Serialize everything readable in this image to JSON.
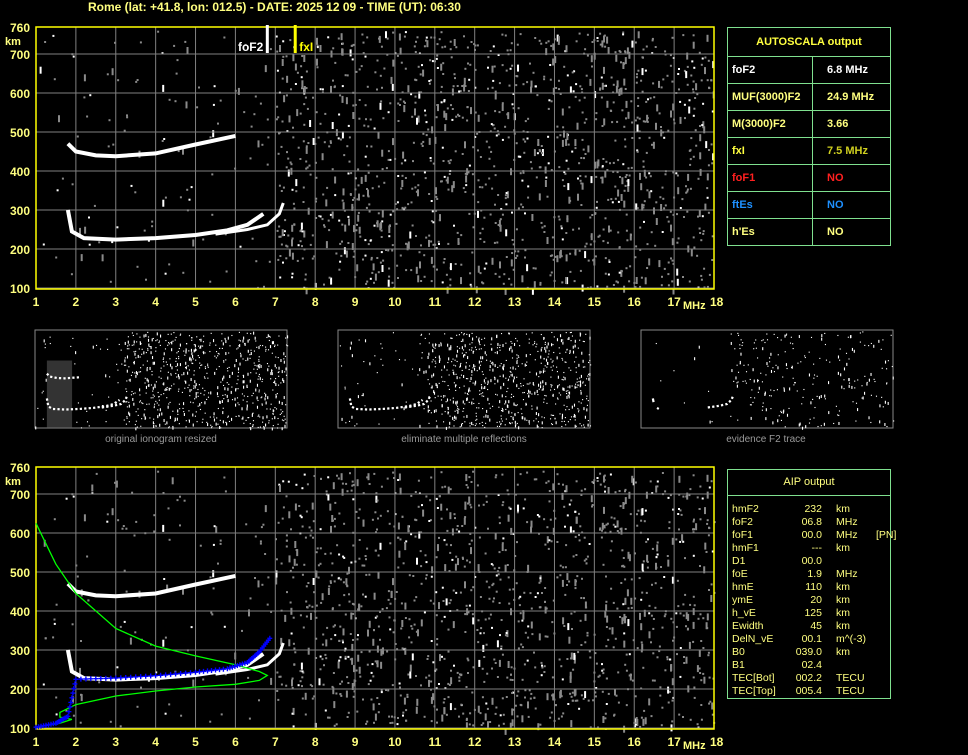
{
  "header": {
    "title": "Rome (lat: +41.8, lon: 012.5) - DATE: 2025 12 09 - TIME (UT): 06:30"
  },
  "colors": {
    "axis": "#ffff00",
    "grid": "#808080",
    "trace": "#ffffff",
    "profile": "#00ff00",
    "fitted": "#0000ff",
    "table_border": "#7fe08f",
    "label_yellow": "#ffff80",
    "red": "#ff2020",
    "blue": "#1e90ff"
  },
  "chart_data": [
    {
      "type": "scatter",
      "xlabel": "MHz",
      "ylabel": "km",
      "xlim": [
        1,
        18
      ],
      "ylim": [
        100,
        760
      ],
      "xticks": [
        "1",
        "2",
        "3",
        "4",
        "5",
        "6",
        "7",
        "8",
        "9",
        "10",
        "11",
        "12",
        "13",
        "14",
        "15",
        "16",
        "17",
        "18"
      ],
      "yticks": [
        "760",
        "700",
        "600",
        "500",
        "400",
        "300",
        "200",
        "100"
      ],
      "grid": true,
      "markers": [
        {
          "name": "foF2",
          "x": 6.8
        },
        {
          "name": "fxI",
          "x": 7.5
        }
      ],
      "traces": {
        "f2_o": [
          [
            1.8,
            300
          ],
          [
            1.9,
            245
          ],
          [
            2.2,
            228
          ],
          [
            3,
            224
          ],
          [
            4,
            228
          ],
          [
            5,
            236
          ],
          [
            5.8,
            248
          ],
          [
            6.3,
            262
          ],
          [
            6.7,
            290
          ]
        ],
        "f2_x": [
          [
            5.5,
            238
          ],
          [
            6.3,
            250
          ],
          [
            6.8,
            262
          ],
          [
            7.1,
            290
          ],
          [
            7.2,
            318
          ]
        ],
        "multiple": [
          [
            1.8,
            470
          ],
          [
            2,
            450
          ],
          [
            2.5,
            440
          ],
          [
            3,
            438
          ],
          [
            4,
            445
          ],
          [
            5,
            468
          ],
          [
            6,
            490
          ]
        ]
      }
    },
    {
      "type": "scatter",
      "xlabel": "MHz",
      "ylabel": "km",
      "xlim": [
        1,
        18
      ],
      "ylim": [
        100,
        760
      ],
      "xticks": [
        "1",
        "2",
        "3",
        "4",
        "5",
        "6",
        "7",
        "8",
        "9",
        "10",
        "11",
        "12",
        "13",
        "14",
        "15",
        "16",
        "17",
        "18"
      ],
      "yticks": [
        "760",
        "700",
        "600",
        "500",
        "400",
        "300",
        "200",
        "100"
      ],
      "grid": true,
      "profile": [
        [
          1,
          625
        ],
        [
          1.5,
          520
        ],
        [
          2,
          445
        ],
        [
          3,
          355
        ],
        [
          4,
          310
        ],
        [
          5,
          285
        ],
        [
          6,
          262
        ],
        [
          6.6,
          245
        ],
        [
          6.8,
          235
        ],
        [
          6.6,
          222
        ],
        [
          6,
          212
        ],
        [
          5,
          205
        ],
        [
          4,
          195
        ],
        [
          3,
          182
        ],
        [
          2,
          160
        ],
        [
          1.6,
          140
        ],
        [
          1.6,
          128
        ],
        [
          1.9,
          122
        ],
        [
          1.6,
          112
        ],
        [
          1,
          102
        ]
      ],
      "fitted": [
        [
          1,
          102
        ],
        [
          1.5,
          112
        ],
        [
          1.8,
          130
        ],
        [
          2,
          225
        ],
        [
          3,
          228
        ],
        [
          4,
          234
        ],
        [
          5,
          243
        ],
        [
          5.8,
          252
        ],
        [
          6.3,
          268
        ],
        [
          6.6,
          295
        ],
        [
          6.9,
          335
        ]
      ]
    }
  ],
  "panels": [
    {
      "caption": "original ionogram resized"
    },
    {
      "caption": "eliminate multiple reflections"
    },
    {
      "caption": "evidence F2 trace"
    }
  ],
  "autoscala": {
    "title": "AUTOSCALA output",
    "rows": [
      {
        "label": "foF2",
        "value": "6.8 MHz",
        "lc": "#ffffff",
        "vc": "#ffffff"
      },
      {
        "label": "MUF(3000)F2",
        "value": "24.9 MHz",
        "lc": "#ffff80",
        "vc": "#ffff80"
      },
      {
        "label": "M(3000)F2",
        "value": "3.66",
        "lc": "#ffff80",
        "vc": "#ffff80"
      },
      {
        "label": "fxI",
        "value": "7.5 MHz",
        "lc": "#ffff40",
        "vc": "#d0d020"
      },
      {
        "label": "foF1",
        "value": "NO",
        "lc": "#ff2020",
        "vc": "#ff2020"
      },
      {
        "label": "ftEs",
        "value": "NO",
        "lc": "#1e90ff",
        "vc": "#1e90ff"
      },
      {
        "label": "h'Es",
        "value": "NO",
        "lc": "#ffff80",
        "vc": "#ffff80"
      }
    ]
  },
  "aip": {
    "title": "AIP output",
    "rows": [
      {
        "n": "hmF2",
        "v": "232",
        "u": "km",
        "x": ""
      },
      {
        "n": "foF2",
        "v": "06.8",
        "u": "MHz",
        "x": ""
      },
      {
        "n": "foF1",
        "v": "00.0",
        "u": "MHz",
        "x": "[PN]"
      },
      {
        "n": "hmF1",
        "v": "---",
        "u": "km",
        "x": ""
      },
      {
        "n": "D1",
        "v": "00.0",
        "u": "",
        "x": ""
      },
      {
        "n": "foE",
        "v": "1.9",
        "u": "MHz",
        "x": ""
      },
      {
        "n": "hmE",
        "v": "110",
        "u": "km",
        "x": ""
      },
      {
        "n": "ymE",
        "v": "20",
        "u": "km",
        "x": ""
      },
      {
        "n": "h_vE",
        "v": "125",
        "u": "km",
        "x": ""
      },
      {
        "n": "Ewidth",
        "v": "45",
        "u": "km",
        "x": ""
      },
      {
        "n": "DelN_vE",
        "v": "00.1",
        "u": "m^(-3)",
        "x": ""
      },
      {
        "n": "B0",
        "v": "039.0",
        "u": "km",
        "x": ""
      },
      {
        "n": "B1",
        "v": "02.4",
        "u": "",
        "x": ""
      },
      {
        "n": "TEC[Bot]",
        "v": "002.2",
        "u": "TECU",
        "x": ""
      },
      {
        "n": "TEC[Top]",
        "v": "005.4",
        "u": "TECU",
        "x": ""
      }
    ]
  }
}
